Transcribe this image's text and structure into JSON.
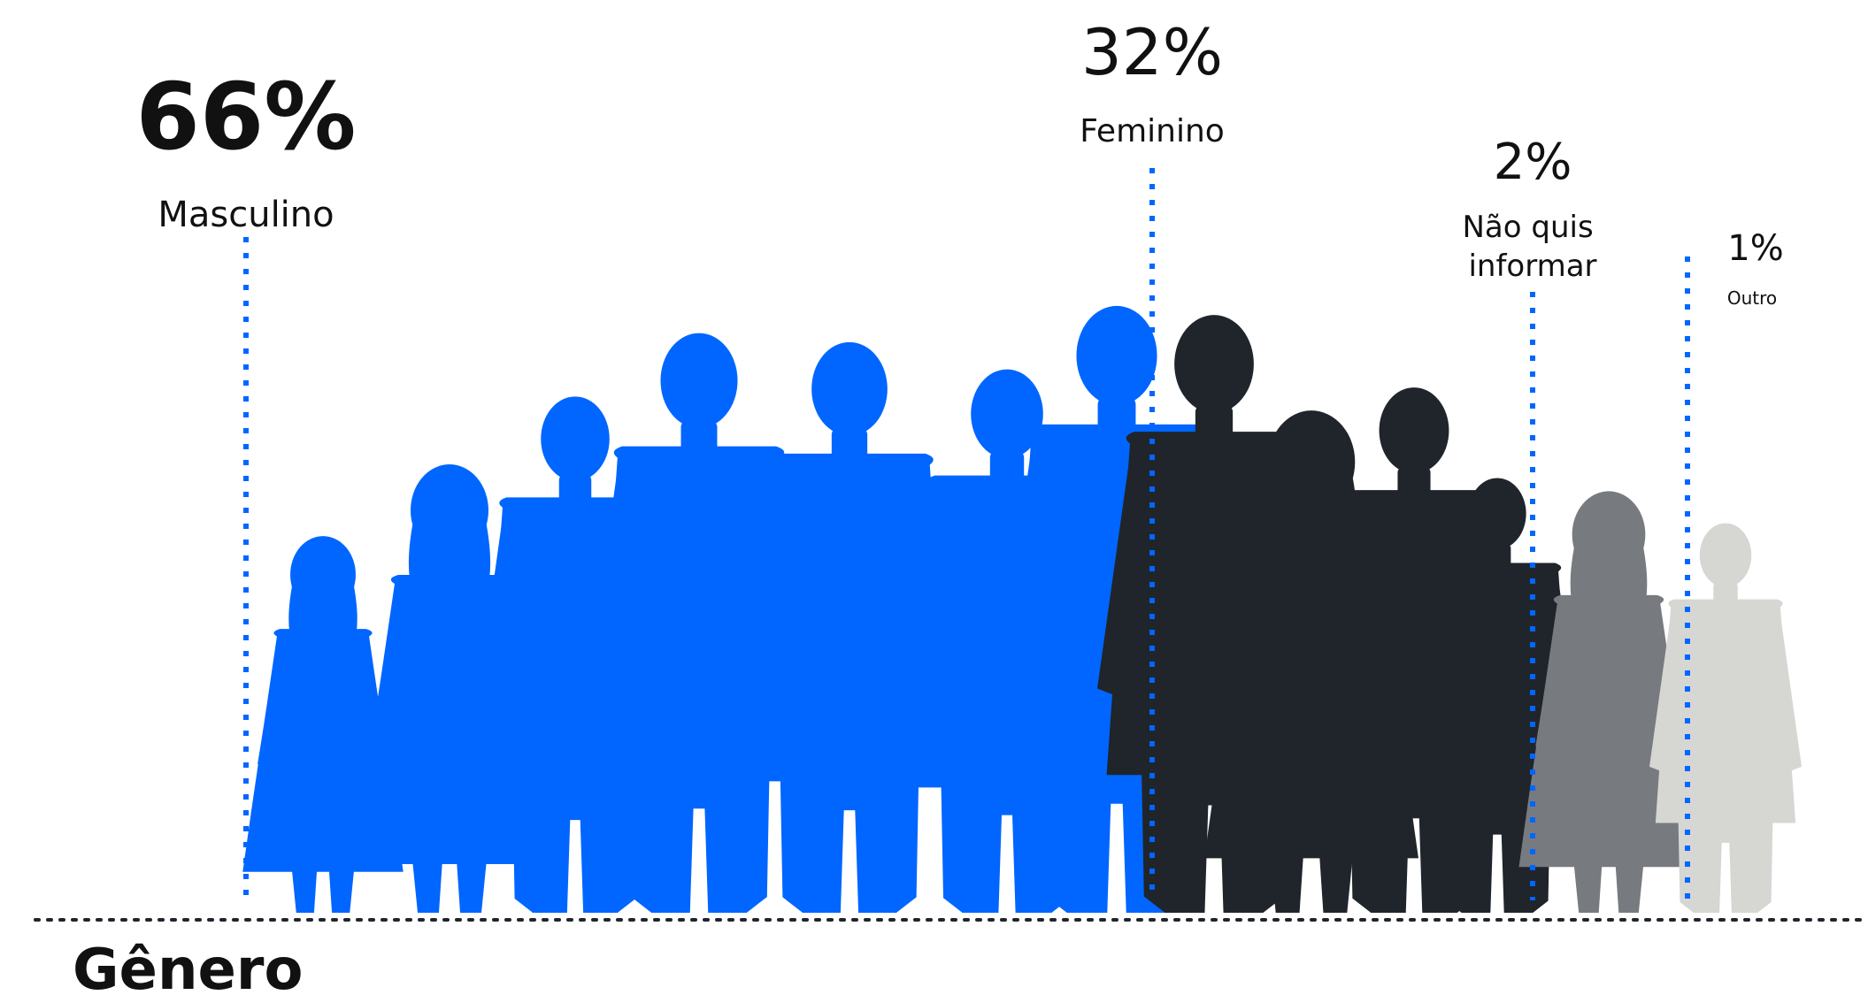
{
  "chart_data": {
    "type": "bar",
    "title": "Gênero",
    "categories": [
      "Masculino",
      "Feminino",
      "Não quis informar",
      "Outro"
    ],
    "values": [
      66,
      32,
      2,
      1
    ],
    "value_labels": [
      "66%",
      "32%",
      "2%",
      "1%"
    ],
    "unit": "%",
    "grid": false,
    "legend": "none",
    "colors": {
      "Masculino": "#0066ff",
      "Feminino": "#1f252b",
      "Não quis informar": "#777b7f",
      "Outro": "#d6d6d3",
      "guides": "#0066ff",
      "baseline": "#1f252b",
      "text": "#111111"
    }
  }
}
